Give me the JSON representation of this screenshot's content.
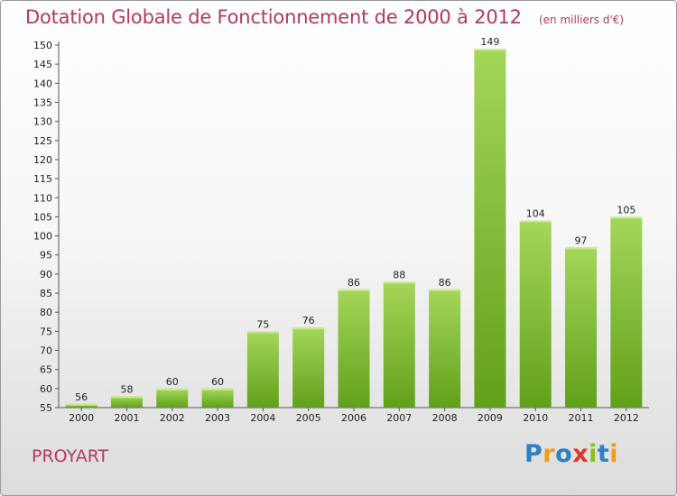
{
  "chart_data": {
    "type": "bar",
    "title": "Dotation Globale de Fonctionnement de 2000 à 2012",
    "subtitle": "(en milliers d'€)",
    "categories": [
      "2000",
      "2001",
      "2002",
      "2003",
      "2004",
      "2005",
      "2006",
      "2007",
      "2008",
      "2009",
      "2010",
      "2011",
      "2012"
    ],
    "values": [
      56,
      58,
      60,
      60,
      75,
      76,
      86,
      88,
      86,
      149,
      104,
      97,
      105
    ],
    "ylim": [
      55,
      150
    ],
    "ytick_step": 5,
    "xlabel": "",
    "ylabel": "",
    "grid": false,
    "bar_color_top": "#a4d65a",
    "bar_color_bottom": "#62a01a"
  },
  "footer": {
    "commune": "PROYART",
    "logo_letters": [
      "P",
      "r",
      "o",
      "x",
      "i",
      "t",
      "i"
    ],
    "logo_colors": [
      "#2f7fc1",
      "#f29a1c",
      "#2f7fc1",
      "#d93a2b",
      "#8cbf26",
      "#2f7fc1",
      "#f29a1c"
    ]
  }
}
